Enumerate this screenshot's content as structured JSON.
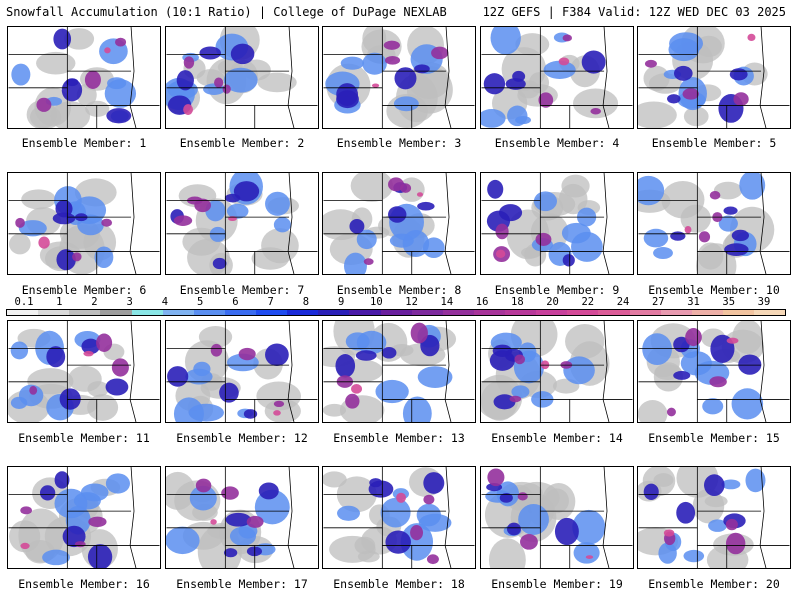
{
  "header": {
    "title": "Snowfall Accumulation (10:1 Ratio) | College of DuPage NEXLAB",
    "run_info": "12Z GEFS | F384 Valid: 12Z WED DEC 03 2025"
  },
  "member_label_prefix": "Ensemble Member:",
  "members": [
    {
      "number": "1",
      "label": "Ensemble Member: 1"
    },
    {
      "number": "2",
      "label": "Ensemble Member: 2"
    },
    {
      "number": "3",
      "label": "Ensemble Member: 3"
    },
    {
      "number": "4",
      "label": "Ensemble Member: 4"
    },
    {
      "number": "5",
      "label": "Ensemble Member: 5"
    },
    {
      "number": "6",
      "label": "Ensemble Member: 6"
    },
    {
      "number": "7",
      "label": "Ensemble Member: 7"
    },
    {
      "number": "8",
      "label": "Ensemble Member: 8"
    },
    {
      "number": "9",
      "label": "Ensemble Member: 9"
    },
    {
      "number": "10",
      "label": "Ensemble Member: 10"
    },
    {
      "number": "11",
      "label": "Ensemble Member: 11"
    },
    {
      "number": "12",
      "label": "Ensemble Member: 12"
    },
    {
      "number": "13",
      "label": "Ensemble Member: 13"
    },
    {
      "number": "14",
      "label": "Ensemble Member: 14"
    },
    {
      "number": "15",
      "label": "Ensemble Member: 15"
    },
    {
      "number": "16",
      "label": "Ensemble Member: 16"
    },
    {
      "number": "17",
      "label": "Ensemble Member: 17"
    },
    {
      "number": "18",
      "label": "Ensemble Member: 18"
    },
    {
      "number": "19",
      "label": "Ensemble Member: 19"
    },
    {
      "number": "20",
      "label": "Ensemble Member: 20"
    }
  ],
  "colorbar": {
    "labels": [
      "0.1",
      "1",
      "2",
      "3",
      "4",
      "5",
      "6",
      "7",
      "8",
      "9",
      "10",
      "12",
      "14",
      "16",
      "18",
      "20",
      "22",
      "24",
      "27",
      "31",
      "35",
      "39"
    ],
    "colors": [
      "#f2f2f2",
      "#d9d9d9",
      "#bdbdbd",
      "#9e9e9e",
      "#8ae6e6",
      "#7fb2f0",
      "#5a8ef0",
      "#3a6cf0",
      "#1f4cf0",
      "#1a2ad9",
      "#2a1fb8",
      "#4a1aa8",
      "#6a1f9e",
      "#7e2a9e",
      "#94309c",
      "#a8349a",
      "#b8389a",
      "#c8409c",
      "#d44a98",
      "#dc5c98",
      "#e27aa2",
      "#e89ab0",
      "#eeb0a8",
      "#f2c4a0",
      "#f6d8b8"
    ]
  },
  "map_colors": {
    "background": "#ffffff",
    "borders": "#000000",
    "light_snow": "#bdbdbd",
    "moderate_snow": "#5a8ef0",
    "heavy_snow": "#2a1fb8",
    "very_heavy_snow": "#94309c",
    "extreme_snow": "#d44a98"
  }
}
